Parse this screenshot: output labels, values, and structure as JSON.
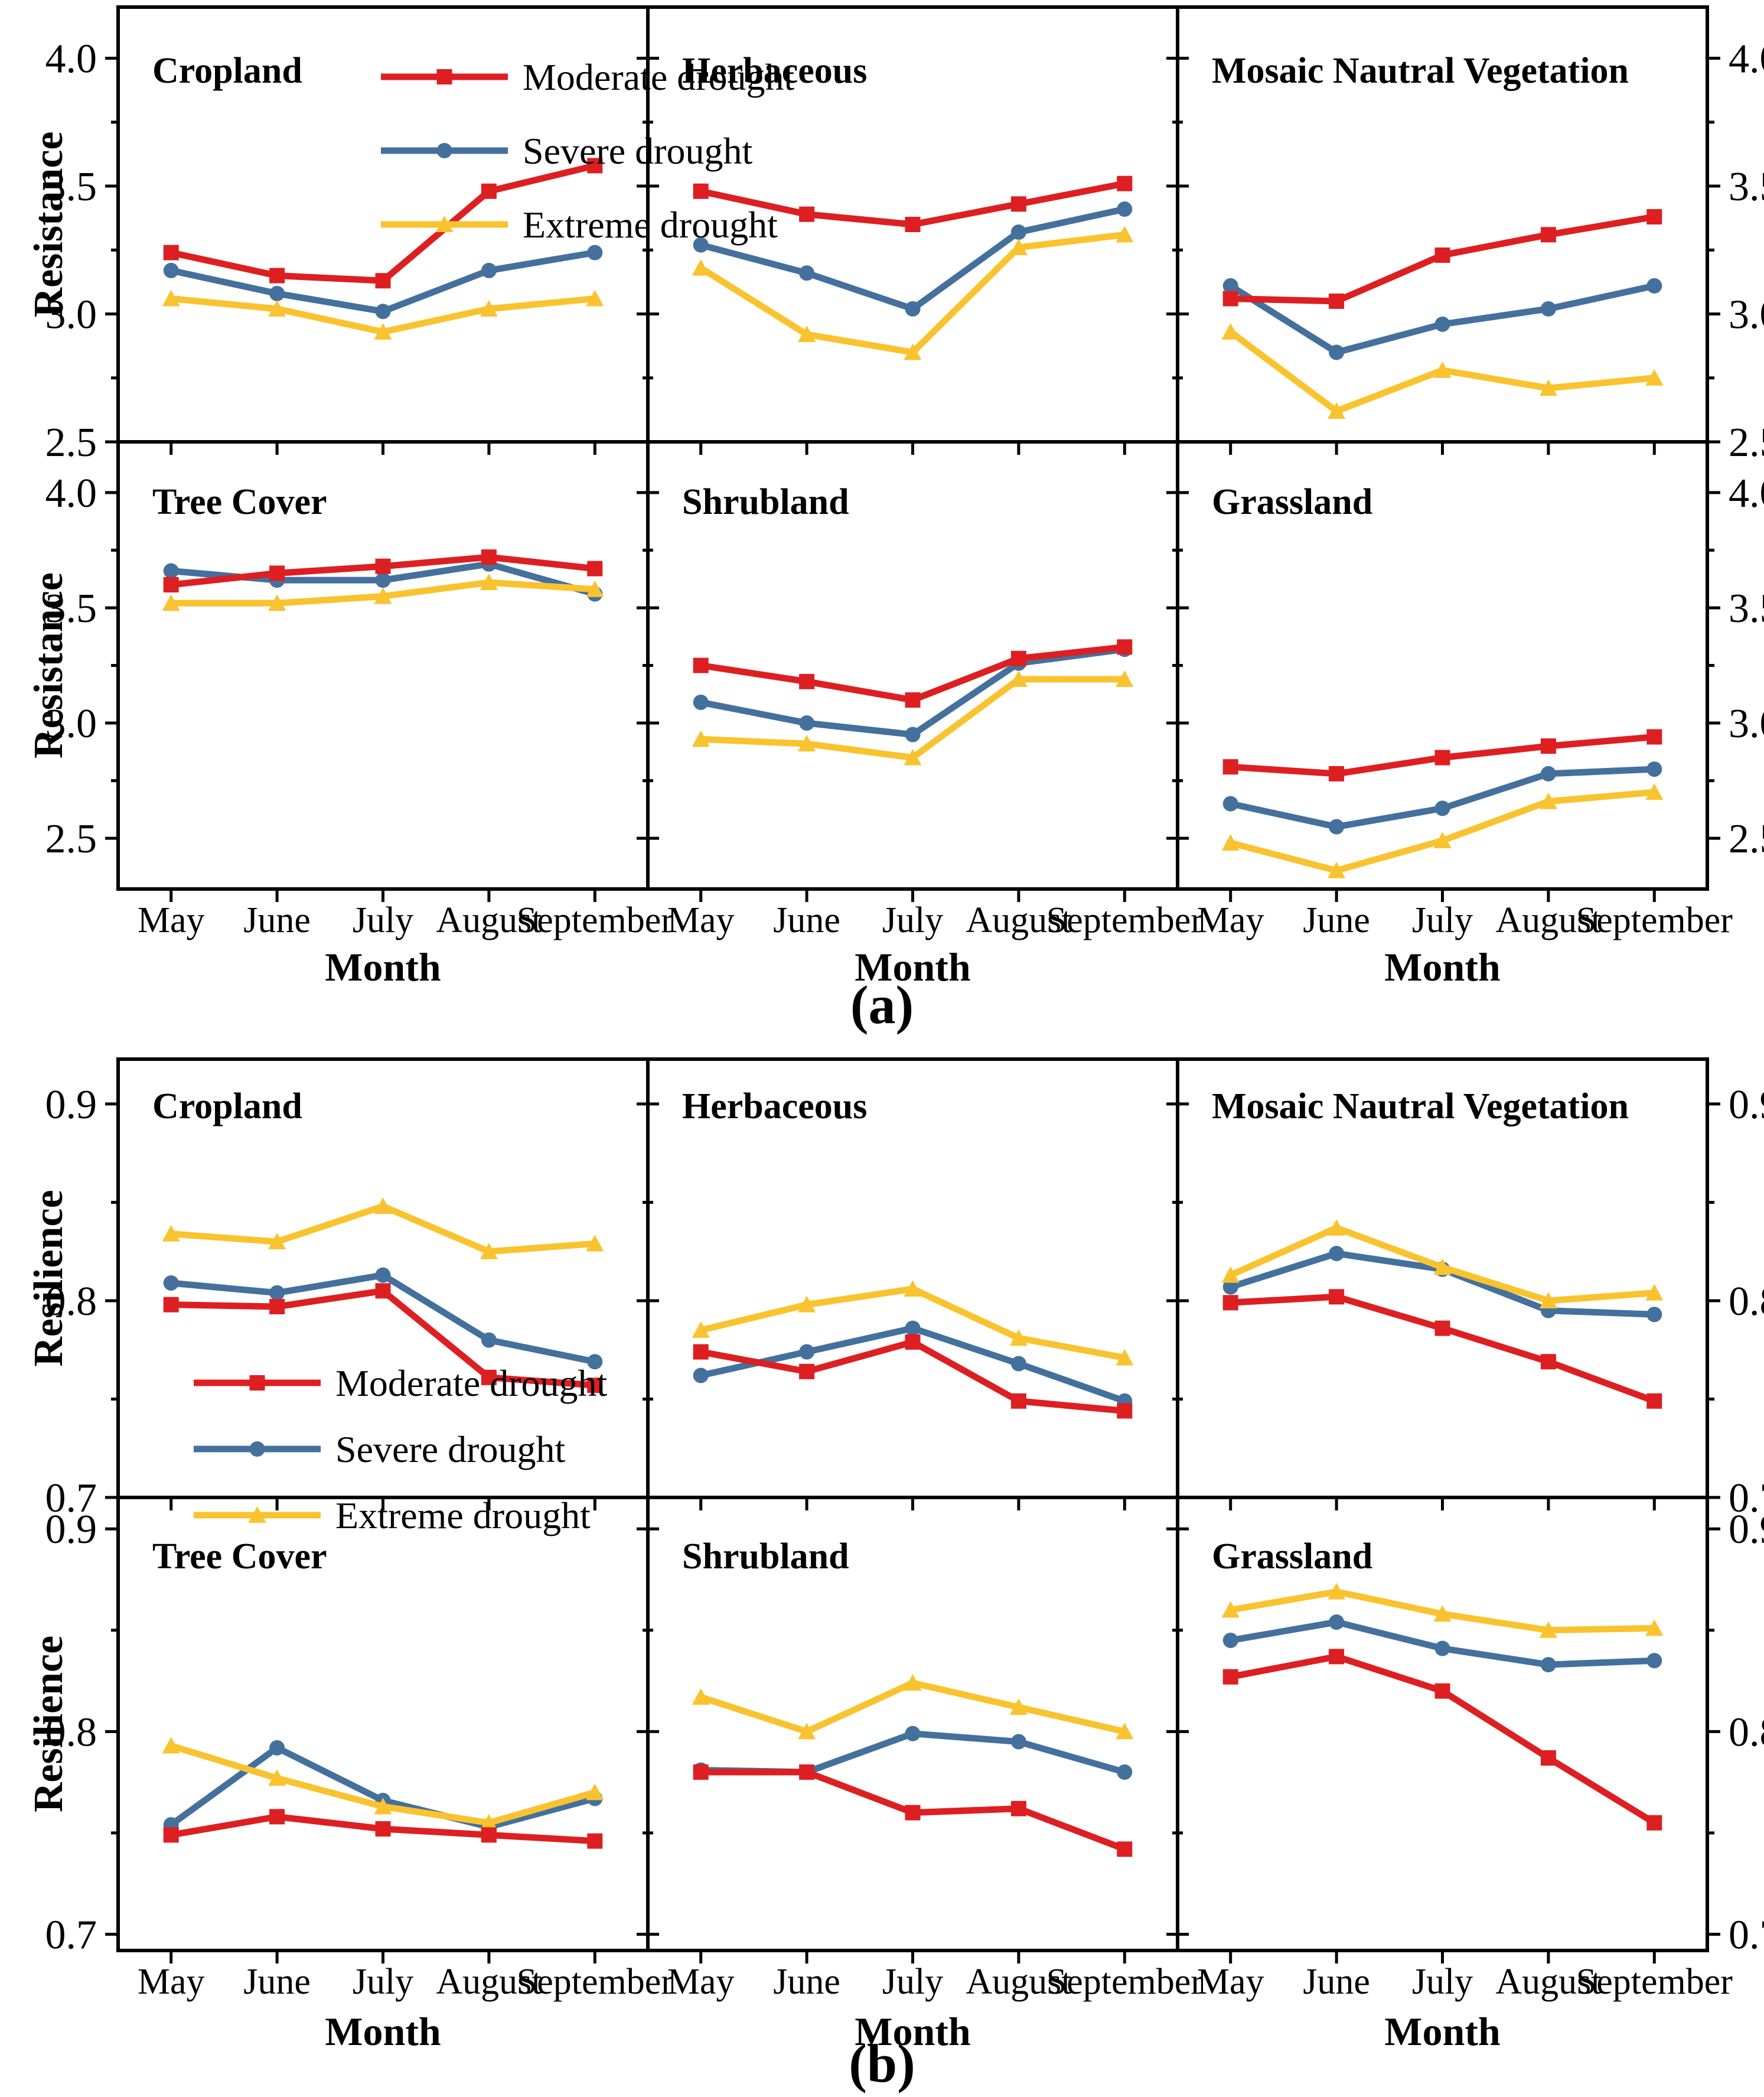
{
  "figure": {
    "panel_a_tag": "(a)",
    "panel_b_tag": "(b)"
  },
  "months": [
    "May",
    "June",
    "July",
    "August",
    "September"
  ],
  "series": [
    {
      "id": "moderate",
      "name": "Moderate drought",
      "color": "#dd1f22",
      "marker": "square"
    },
    {
      "id": "severe",
      "name": "Severe drought",
      "color": "#44709d",
      "marker": "circle"
    },
    {
      "id": "extreme",
      "name": "Extreme drought",
      "color": "#f9c32f",
      "marker": "triangle"
    }
  ],
  "chart_data": [
    {
      "panel": "a",
      "type": "line",
      "title": "",
      "ylabel": "Resistance",
      "xlabel": "Month",
      "x": [
        "May",
        "June",
        "July",
        "August",
        "September"
      ],
      "yticks": [
        2.5,
        3.0,
        3.5,
        4.0
      ],
      "ytick_labels": [
        "2.5",
        "3.0",
        "3.5",
        "4.0"
      ],
      "yminor_step": 0.25,
      "ylim_row1": [
        2.5,
        4.2
      ],
      "ylim_row2": [
        2.28,
        4.22
      ],
      "grid": false,
      "legend_position": "inside-subplot-0-top",
      "subplots": [
        {
          "title": "Cropland",
          "series": {
            "moderate": [
              3.24,
              3.15,
              3.13,
              3.48,
              3.58
            ],
            "severe": [
              3.17,
              3.08,
              3.01,
              3.17,
              3.24
            ],
            "extreme": [
              3.06,
              3.02,
              2.93,
              3.02,
              3.06
            ]
          }
        },
        {
          "title": "Herbaceous",
          "series": {
            "moderate": [
              3.48,
              3.39,
              3.35,
              3.43,
              3.51
            ],
            "severe": [
              3.27,
              3.16,
              3.02,
              3.32,
              3.41
            ],
            "extreme": [
              3.18,
              2.92,
              2.85,
              3.26,
              3.31
            ]
          }
        },
        {
          "title": "Mosaic Nautral  Vegetation",
          "series": {
            "moderate": [
              3.06,
              3.05,
              3.23,
              3.31,
              3.38
            ],
            "severe": [
              3.11,
              2.85,
              2.96,
              3.02,
              3.11
            ],
            "extreme": [
              2.93,
              2.62,
              2.78,
              2.71,
              2.75
            ]
          }
        },
        {
          "title": "Tree Cover",
          "series": {
            "moderate": [
              3.6,
              3.65,
              3.68,
              3.72,
              3.67
            ],
            "severe": [
              3.66,
              3.62,
              3.62,
              3.69,
              3.56
            ],
            "extreme": [
              3.52,
              3.52,
              3.55,
              3.61,
              3.58
            ]
          }
        },
        {
          "title": "Shrubland",
          "series": {
            "moderate": [
              3.25,
              3.18,
              3.1,
              3.28,
              3.33
            ],
            "severe": [
              3.09,
              3.0,
              2.95,
              3.26,
              3.32
            ],
            "extreme": [
              2.93,
              2.91,
              2.85,
              3.19,
              3.19
            ]
          }
        },
        {
          "title": "Grassland",
          "series": {
            "moderate": [
              2.81,
              2.78,
              2.85,
              2.9,
              2.94
            ],
            "severe": [
              2.65,
              2.55,
              2.63,
              2.78,
              2.8
            ],
            "extreme": [
              2.48,
              2.36,
              2.49,
              2.66,
              2.7
            ]
          }
        }
      ]
    },
    {
      "panel": "b",
      "type": "line",
      "title": "",
      "ylabel": "Resilience",
      "xlabel": "Month",
      "x": [
        "May",
        "June",
        "July",
        "August",
        "September"
      ],
      "yticks": [
        0.7,
        0.8,
        0.9
      ],
      "ytick_labels": [
        "0.7",
        "0.8",
        "0.9"
      ],
      "yminor_step": 0.05,
      "ylim_row1": [
        0.7,
        0.9228
      ],
      "ylim_row2": [
        0.692,
        0.9155
      ],
      "grid": false,
      "legend_position": "inside-subplot-0-bottom-left",
      "subplots": [
        {
          "title": "Cropland",
          "series": {
            "moderate": [
              0.798,
              0.797,
              0.805,
              0.761,
              0.757
            ],
            "severe": [
              0.809,
              0.804,
              0.813,
              0.78,
              0.769
            ],
            "extreme": [
              0.834,
              0.83,
              0.848,
              0.825,
              0.829
            ]
          }
        },
        {
          "title": "Herbaceous",
          "series": {
            "moderate": [
              0.774,
              0.764,
              0.779,
              0.749,
              0.744
            ],
            "severe": [
              0.762,
              0.774,
              0.786,
              0.768,
              0.749
            ],
            "extreme": [
              0.785,
              0.798,
              0.806,
              0.781,
              0.771
            ]
          }
        },
        {
          "title": "Mosaic Nautral  Vegetation",
          "series": {
            "moderate": [
              0.799,
              0.802,
              0.786,
              0.769,
              0.749
            ],
            "severe": [
              0.807,
              0.824,
              0.816,
              0.795,
              0.793
            ],
            "extreme": [
              0.813,
              0.837,
              0.817,
              0.8,
              0.804
            ]
          }
        },
        {
          "title": "Tree Cover",
          "series": {
            "moderate": [
              0.749,
              0.758,
              0.752,
              0.749,
              0.746
            ],
            "severe": [
              0.754,
              0.792,
              0.766,
              0.753,
              0.767
            ],
            "extreme": [
              0.793,
              0.777,
              0.763,
              0.755,
              0.77
            ]
          }
        },
        {
          "title": "Shrubland",
          "series": {
            "moderate": [
              0.78,
              0.78,
              0.76,
              0.762,
              0.742
            ],
            "severe": [
              0.781,
              0.78,
              0.799,
              0.795,
              0.78
            ],
            "extreme": [
              0.817,
              0.8,
              0.824,
              0.812,
              0.8
            ]
          }
        },
        {
          "title": "Grassland",
          "series": {
            "moderate": [
              0.827,
              0.837,
              0.82,
              0.787,
              0.755
            ],
            "severe": [
              0.845,
              0.854,
              0.841,
              0.833,
              0.835
            ],
            "extreme": [
              0.86,
              0.869,
              0.858,
              0.85,
              0.851
            ]
          }
        }
      ]
    }
  ]
}
